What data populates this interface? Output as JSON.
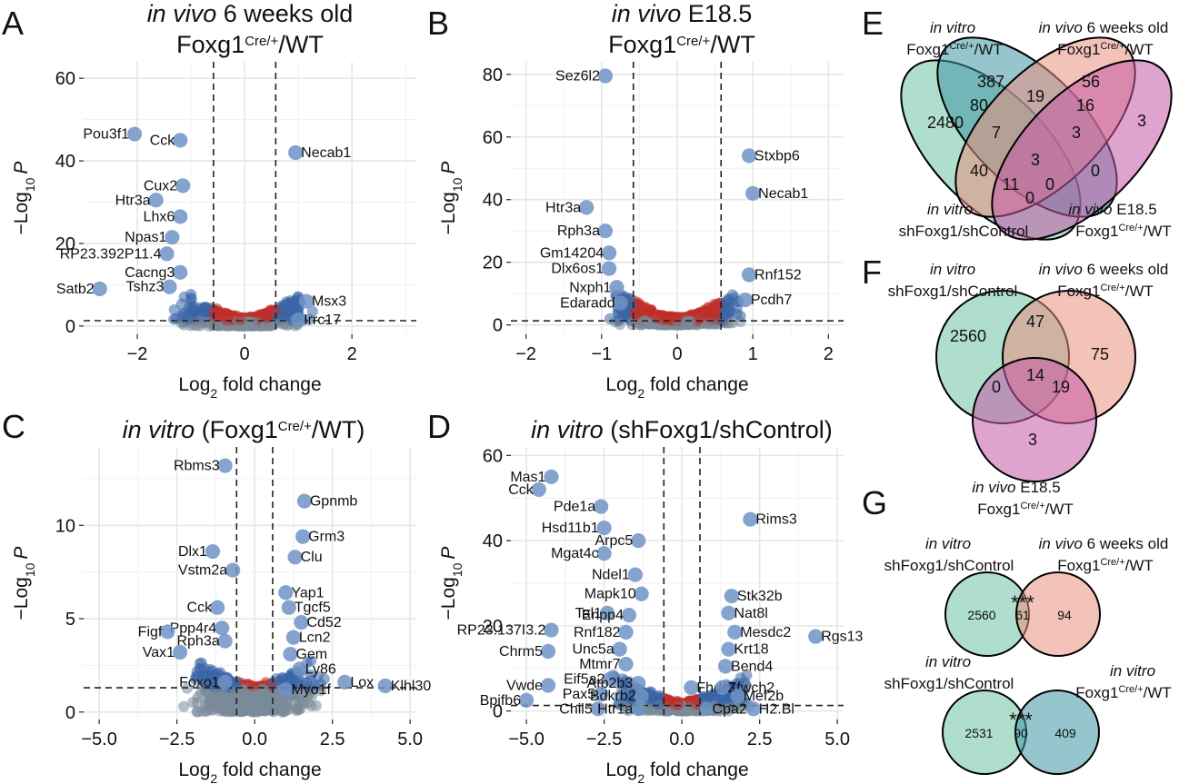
{
  "panel_letters": [
    "A",
    "B",
    "C",
    "D",
    "E",
    "F",
    "G"
  ],
  "axis_text": {
    "xlabel_main": "Log",
    "xlabel_sub": "2",
    "xlabel_rest": " fold change",
    "ylabel_pre": "−Log",
    "ylabel_sub": "10",
    "ylabel_post": "P"
  },
  "colors": {
    "ns": "#7a8a99",
    "sig_fc_only": "#c03028",
    "sig_p_only": "#3a66a8",
    "label_point": "#6f93c6",
    "gridline": "#e6e6e6",
    "panel_bg": "#ffffff",
    "venn_green": "#6fc2a3",
    "venn_blue": "#3f96a6",
    "venn_salmon": "#e98f7f",
    "venn_magenta": "#c45aa5"
  },
  "chart_data": [
    {
      "id": "A",
      "type": "scatter",
      "title_italic": "in vivo",
      "title_plain": " 6 weeks old",
      "title_line2": "Foxg1",
      "title_line2_sup": "Cre/+",
      "title_line2_rest": "/WT",
      "xticks": [
        -2,
        0,
        2
      ],
      "yticks": [
        0,
        20,
        40,
        60
      ],
      "xlim": [
        -3,
        3.2
      ],
      "ylim": [
        -2,
        64
      ],
      "fc_cut": 0.58,
      "p_cut": 1.3,
      "labels": [
        {
          "text": "Pou3f1",
          "x": -2.05,
          "y": 46.5
        },
        {
          "text": "Cck",
          "x": -1.2,
          "y": 45
        },
        {
          "text": "Cux2",
          "x": -1.15,
          "y": 34
        },
        {
          "text": "Htr3a",
          "x": -1.65,
          "y": 30.5
        },
        {
          "text": "Lhx6",
          "x": -1.2,
          "y": 26.5
        },
        {
          "text": "Npas1",
          "x": -1.35,
          "y": 21.5
        },
        {
          "text": "RP23.392P11.4",
          "x": -1.45,
          "y": 17.5
        },
        {
          "text": "Cacng3",
          "x": -1.2,
          "y": 13
        },
        {
          "text": "Tshz3",
          "x": -1.4,
          "y": 9.5
        },
        {
          "text": "Satb2",
          "x": -2.7,
          "y": 9
        },
        {
          "text": "Necab1",
          "x": 0.95,
          "y": 42
        },
        {
          "text": "Msx3",
          "x": 1.15,
          "y": 6
        },
        {
          "text": "Irrc17",
          "x": 1.0,
          "y": 1.5
        }
      ]
    },
    {
      "id": "B",
      "type": "scatter",
      "title_italic": "in vivo",
      "title_plain": " E18.5",
      "title_line2": "Foxg1",
      "title_line2_sup": "Cre/+",
      "title_line2_rest": "/WT",
      "xticks": [
        -2,
        -1,
        0,
        1,
        2
      ],
      "yticks": [
        0,
        20,
        40,
        60,
        80
      ],
      "xlim": [
        -2.2,
        2.2
      ],
      "ylim": [
        -3,
        84
      ],
      "fc_cut": 0.58,
      "p_cut": 1.3,
      "labels": [
        {
          "text": "Sez6l2",
          "x": -0.95,
          "y": 79.5
        },
        {
          "text": "Htr3a",
          "x": -1.2,
          "y": 37.5
        },
        {
          "text": "Rph3a",
          "x": -0.95,
          "y": 30
        },
        {
          "text": "Gm14204",
          "x": -0.9,
          "y": 23
        },
        {
          "text": "Dlx6os1",
          "x": -0.9,
          "y": 18
        },
        {
          "text": "Nxph1",
          "x": -0.8,
          "y": 12
        },
        {
          "text": "Edaradd",
          "x": -0.75,
          "y": 7
        },
        {
          "text": "Stxbp6",
          "x": 0.95,
          "y": 54
        },
        {
          "text": "Necab1",
          "x": 1.0,
          "y": 42
        },
        {
          "text": "Rnf152",
          "x": 0.95,
          "y": 16
        },
        {
          "text": "Pcdh7",
          "x": 0.9,
          "y": 8
        }
      ]
    },
    {
      "id": "C",
      "type": "scatter",
      "title_italic": "in vitro",
      "title_plain": " (Foxg1",
      "title_sup": "Cre/+",
      "title_rest": "/WT)",
      "xticks": [
        -5,
        -2.5,
        0,
        2.5,
        5
      ],
      "xtick_labels": [
        "−5.0",
        "−2.5",
        "0.0",
        "2.5",
        "5.0"
      ],
      "yticks": [
        0,
        5,
        10
      ],
      "xlim": [
        -5.5,
        5.2
      ],
      "ylim": [
        -0.4,
        14.2
      ],
      "fc_cut": 0.58,
      "p_cut": 1.3,
      "labels": [
        {
          "text": "Rbms3",
          "x": -0.95,
          "y": 13.2
        },
        {
          "text": "Gpnmb",
          "x": 1.6,
          "y": 11.3
        },
        {
          "text": "Grm3",
          "x": 1.55,
          "y": 9.4
        },
        {
          "text": "Clu",
          "x": 1.3,
          "y": 8.3
        },
        {
          "text": "Dlx1",
          "x": -1.35,
          "y": 8.6
        },
        {
          "text": "Vstm2a",
          "x": -0.7,
          "y": 7.6
        },
        {
          "text": "Yap1",
          "x": 1.0,
          "y": 6.4
        },
        {
          "text": "Tgcf5",
          "x": 1.1,
          "y": 5.6
        },
        {
          "text": "Cd52",
          "x": 1.5,
          "y": 4.8
        },
        {
          "text": "Cck",
          "x": -1.2,
          "y": 5.6
        },
        {
          "text": "Ppp4r4",
          "x": -1.05,
          "y": 4.5
        },
        {
          "text": "Rph3a",
          "x": -0.95,
          "y": 3.8
        },
        {
          "text": "Lcn2",
          "x": 1.25,
          "y": 4.0
        },
        {
          "text": "Gem",
          "x": 1.15,
          "y": 3.1
        },
        {
          "text": "Ly86",
          "x": 1.45,
          "y": 2.3
        },
        {
          "text": "Figf",
          "x": -2.8,
          "y": 4.3
        },
        {
          "text": "Vax1",
          "x": -2.4,
          "y": 3.2
        },
        {
          "text": "Foxo1",
          "x": -0.95,
          "y": 1.6
        },
        {
          "text": "Myo1f",
          "x": 1.0,
          "y": 1.2
        },
        {
          "text": "Lox",
          "x": 2.9,
          "y": 1.6
        },
        {
          "text": "Klhl30",
          "x": 4.2,
          "y": 1.4
        }
      ]
    },
    {
      "id": "D",
      "type": "scatter",
      "title_italic": "in vitro",
      "title_plain": " (shFoxg1/shControl)",
      "xticks": [
        -5,
        -2.5,
        0,
        2.5,
        5
      ],
      "xtick_labels": [
        "−5.0",
        "−2.5",
        "0.0",
        "2.5",
        "5.0"
      ],
      "yticks": [
        0,
        20,
        40,
        60
      ],
      "xlim": [
        -5.5,
        5.2
      ],
      "ylim": [
        -2,
        62
      ],
      "fc_cut": 0.58,
      "p_cut": 1.3,
      "labels": [
        {
          "text": "Mas1",
          "x": -4.2,
          "y": 55
        },
        {
          "text": "Cck",
          "x": -4.6,
          "y": 52
        },
        {
          "text": "Pde1a",
          "x": -2.6,
          "y": 48
        },
        {
          "text": "Hsd11b1",
          "x": -2.5,
          "y": 43
        },
        {
          "text": "Rims3",
          "x": 2.2,
          "y": 45
        },
        {
          "text": "Arpc5",
          "x": -1.4,
          "y": 40
        },
        {
          "text": "Mgat4c",
          "x": -2.5,
          "y": 37
        },
        {
          "text": "Ndel1",
          "x": -1.5,
          "y": 32
        },
        {
          "text": "Mapk10",
          "x": -1.3,
          "y": 27.5
        },
        {
          "text": "Stk32b",
          "x": 1.6,
          "y": 27
        },
        {
          "text": "Tal1",
          "x": -2.4,
          "y": 23
        },
        {
          "text": "Enpp4",
          "x": -1.7,
          "y": 22.5
        },
        {
          "text": "Nat8l",
          "x": 1.5,
          "y": 23
        },
        {
          "text": "RP23.137I3.2",
          "x": -4.2,
          "y": 19
        },
        {
          "text": "Rnf182",
          "x": -1.8,
          "y": 18.5
        },
        {
          "text": "Mesdc2",
          "x": 1.7,
          "y": 18.5
        },
        {
          "text": "Rgs13",
          "x": 4.3,
          "y": 17.5
        },
        {
          "text": "Unc5a",
          "x": -2.0,
          "y": 14.5
        },
        {
          "text": "Chrm5",
          "x": -4.3,
          "y": 14
        },
        {
          "text": "Krt18",
          "x": 1.5,
          "y": 14.5
        },
        {
          "text": "Mtmr7",
          "x": -1.8,
          "y": 11
        },
        {
          "text": "Bend4",
          "x": 1.4,
          "y": 10.5
        },
        {
          "text": "Eif5a2",
          "x": -2.3,
          "y": 7.5
        },
        {
          "text": "Atp2b3",
          "x": -1.4,
          "y": 6.5
        },
        {
          "text": "Vwde",
          "x": -4.3,
          "y": 6
        },
        {
          "text": "Fhdc1",
          "x": 0.3,
          "y": 5.5
        },
        {
          "text": "Zfwch2",
          "x": 1.3,
          "y": 5.5
        },
        {
          "text": "Pax5",
          "x": -2.6,
          "y": 4
        },
        {
          "text": "Bdkrb2",
          "x": -1.3,
          "y": 3.5
        },
        {
          "text": "Mef2b",
          "x": 1.8,
          "y": 3.5
        },
        {
          "text": "Bpifb6",
          "x": -5.0,
          "y": 2.5
        },
        {
          "text": "Chil5",
          "x": -2.7,
          "y": 0.5
        },
        {
          "text": "Htr1a",
          "x": -1.4,
          "y": 0.5
        },
        {
          "text": "Cpa2",
          "x": 0.8,
          "y": 0.5
        },
        {
          "text": "H2.Bl",
          "x": 2.3,
          "y": 0.5
        }
      ]
    },
    {
      "id": "E",
      "type": "venn",
      "set_labels": [
        {
          "italic": "in vitro",
          "line2": "Foxg1",
          "sup": "Cre/+",
          "rest": "/WT"
        },
        {
          "italic": "in vivo",
          "plain": " 6 weeks old",
          "line2": "Foxg1",
          "sup": "Cre/+",
          "rest": "/WT"
        },
        {
          "italic": "in vitro",
          "line2": "shFoxg1/shControl",
          "sup": "",
          "rest": ""
        },
        {
          "italic": "in vivo",
          "plain": " E18.5",
          "line2": "Foxg1",
          "sup": "Cre/+",
          "rest": "/WT"
        }
      ],
      "counts": [
        "387",
        "56",
        "2480",
        "80",
        "19",
        "16",
        "3",
        "7",
        "3",
        "40",
        "3",
        "0",
        "11",
        "0",
        "0"
      ]
    },
    {
      "id": "F",
      "type": "venn",
      "set_labels": [
        {
          "italic": "in vitro",
          "line2": "shFoxg1/shControl",
          "sup": "",
          "rest": ""
        },
        {
          "italic": "in vivo",
          "plain": " 6 weeks old",
          "line2": "Foxg1",
          "sup": "Cre/+",
          "rest": "/WT"
        },
        {
          "italic": "in vivo",
          "plain": " E18.5",
          "line2": "Foxg1",
          "sup": "Cre/+",
          "rest": "/WT"
        }
      ],
      "counts": [
        "2560",
        "47",
        "75",
        "14",
        "0",
        "19",
        "3"
      ]
    },
    {
      "id": "G",
      "type": "venn",
      "pairs": [
        {
          "left": {
            "italic": "in vitro",
            "line2": "shFoxg1/shControl"
          },
          "right": {
            "italic": "in vivo",
            "plain": " 6 weeks old",
            "line2": "Foxg1",
            "sup": "Cre/+",
            "rest": "/WT"
          },
          "counts": [
            "2560",
            "61",
            "94"
          ],
          "sig": "***"
        },
        {
          "left": {
            "italic": "in vitro",
            "line2": "shFoxg1/shControl"
          },
          "right": {
            "italic": "in vitro",
            "plain": "",
            "line2": "Foxg1",
            "sup": "Cre/+",
            "rest": "/WT"
          },
          "counts": [
            "2531",
            "90",
            "409"
          ],
          "sig": "***"
        }
      ]
    }
  ]
}
